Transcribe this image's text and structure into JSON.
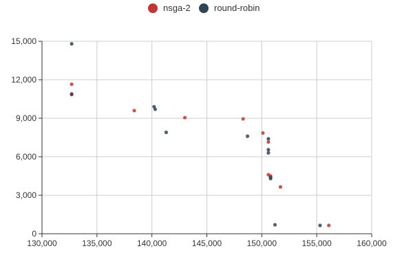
{
  "chart_data": {
    "type": "scatter",
    "title": "",
    "xlabel": "",
    "ylabel": "",
    "xlim": [
      130000,
      160000
    ],
    "ylim": [
      0,
      15000
    ],
    "xticks": [
      130000,
      135000,
      140000,
      145000,
      150000,
      155000,
      160000
    ],
    "yticks": [
      0,
      3000,
      6000,
      9000,
      12000,
      15000
    ],
    "xtick_labels": [
      "130,000",
      "135,000",
      "140,000",
      "145,000",
      "150,000",
      "155,000",
      "160,000"
    ],
    "ytick_labels": [
      "0",
      "3,000",
      "6,000",
      "9,000",
      "12,000",
      "15,000"
    ],
    "grid": true,
    "legend_position": "top-center",
    "series": [
      {
        "name": "nsga-2",
        "color": "#c23531",
        "points": [
          [
            132700,
            11650
          ],
          [
            132700,
            10900
          ],
          [
            138400,
            9600
          ],
          [
            143000,
            9050
          ],
          [
            148300,
            8950
          ],
          [
            150100,
            7850
          ],
          [
            150600,
            7150
          ],
          [
            150600,
            4600
          ],
          [
            150800,
            4500
          ],
          [
            151700,
            3650
          ],
          [
            156100,
            650
          ]
        ]
      },
      {
        "name": "round-robin",
        "color": "#2f4554",
        "points": [
          [
            132700,
            14800
          ],
          [
            132700,
            10850
          ],
          [
            140200,
            9900
          ],
          [
            140300,
            9700
          ],
          [
            141300,
            7900
          ],
          [
            148700,
            7600
          ],
          [
            150600,
            7400
          ],
          [
            150600,
            6550
          ],
          [
            150600,
            6300
          ],
          [
            150800,
            4400
          ],
          [
            150800,
            4300
          ],
          [
            151200,
            700
          ],
          [
            155300,
            650
          ]
        ]
      }
    ]
  }
}
